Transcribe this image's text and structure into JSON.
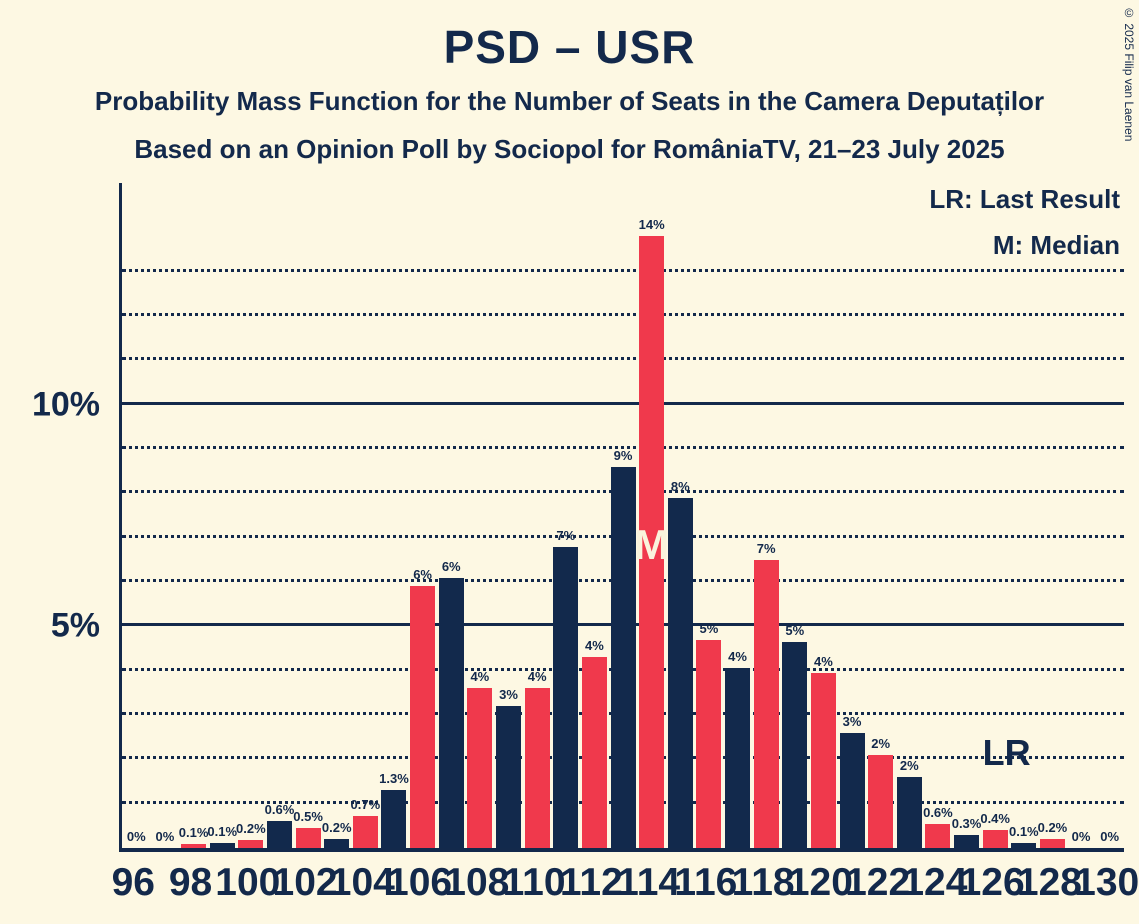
{
  "page": {
    "title": "PSD – USR",
    "subtitle1": "Probability Mass Function for the Number of Seats in the Camera Deputaților",
    "subtitle2": "Based on an Opinion Poll by Sociopol for RomâniaTV, 21–23 July 2025",
    "copyright": "© 2025 Filip van Laenen"
  },
  "legend": {
    "lr": "LR: Last Result",
    "m": "M: Median"
  },
  "colors": {
    "background": "#FDF8E3",
    "red": "#F0394C",
    "navy": "#12294C",
    "text": "#13294B",
    "median_letter": "#FAF3DC"
  },
  "chart_data": {
    "type": "bar",
    "title": "PSD – USR",
    "xlabel": "Number of Seats in the Camera Deputaților",
    "ylabel": "Probability Mass",
    "ylim": [
      0,
      15
    ],
    "grid": "horizontal dotted line every 1%, solid line at 0%, 5% and 10%, dotted lines up to 13%",
    "legend_position": "top-right",
    "y_ticks": [
      {
        "label": "5%",
        "value": 5
      },
      {
        "label": "10%",
        "value": 10
      }
    ],
    "x_tick_labels": [
      96,
      98,
      100,
      102,
      104,
      106,
      108,
      110,
      112,
      114,
      116,
      118,
      120,
      122,
      124,
      126,
      128,
      130
    ],
    "seats": [
      {
        "seat": 96,
        "value": 0,
        "label": "0%",
        "color": "red"
      },
      {
        "seat": 97,
        "value": 0,
        "label": "0%",
        "color": "navy"
      },
      {
        "seat": 98,
        "value": 0.1,
        "label": "0.1%",
        "color": "red"
      },
      {
        "seat": 99,
        "value": 0.12,
        "label": "0.1%",
        "color": "navy"
      },
      {
        "seat": 100,
        "value": 0.18,
        "label": "0.2%",
        "color": "red"
      },
      {
        "seat": 101,
        "value": 0.6,
        "label": "0.6%",
        "color": "navy"
      },
      {
        "seat": 102,
        "value": 0.45,
        "label": "0.5%",
        "color": "red"
      },
      {
        "seat": 103,
        "value": 0.2,
        "label": "0.2%",
        "color": "navy"
      },
      {
        "seat": 104,
        "value": 0.72,
        "label": "0.7%",
        "color": "red"
      },
      {
        "seat": 105,
        "value": 1.3,
        "label": "1.3%",
        "color": "navy"
      },
      {
        "seat": 106,
        "value": 5.9,
        "label": "6%",
        "color": "red"
      },
      {
        "seat": 107,
        "value": 6.1,
        "label": "6%",
        "color": "navy"
      },
      {
        "seat": 108,
        "value": 3.6,
        "label": "4%",
        "color": "red"
      },
      {
        "seat": 109,
        "value": 3.2,
        "label": "3%",
        "color": "navy"
      },
      {
        "seat": 110,
        "value": 3.6,
        "label": "4%",
        "color": "red"
      },
      {
        "seat": 111,
        "value": 6.8,
        "label": "7%",
        "color": "navy"
      },
      {
        "seat": 112,
        "value": 4.3,
        "label": "4%",
        "color": "red"
      },
      {
        "seat": 113,
        "value": 8.6,
        "label": "9%",
        "color": "navy"
      },
      {
        "seat": 114,
        "value": 13.8,
        "label": "14%",
        "color": "red"
      },
      {
        "seat": 115,
        "value": 7.9,
        "label": "8%",
        "color": "navy"
      },
      {
        "seat": 116,
        "value": 4.7,
        "label": "5%",
        "color": "red"
      },
      {
        "seat": 117,
        "value": 4.05,
        "label": "4%",
        "color": "navy"
      },
      {
        "seat": 118,
        "value": 6.5,
        "label": "7%",
        "color": "red"
      },
      {
        "seat": 119,
        "value": 4.65,
        "label": "5%",
        "color": "navy"
      },
      {
        "seat": 120,
        "value": 3.95,
        "label": "4%",
        "color": "red"
      },
      {
        "seat": 121,
        "value": 2.6,
        "label": "3%",
        "color": "navy"
      },
      {
        "seat": 122,
        "value": 2.1,
        "label": "2%",
        "color": "red"
      },
      {
        "seat": 123,
        "value": 1.6,
        "label": "2%",
        "color": "navy"
      },
      {
        "seat": 124,
        "value": 0.55,
        "label": "0.6%",
        "color": "red"
      },
      {
        "seat": 125,
        "value": 0.3,
        "label": "0.3%",
        "color": "navy"
      },
      {
        "seat": 126,
        "value": 0.4,
        "label": "0.4%",
        "color": "red"
      },
      {
        "seat": 127,
        "value": 0.12,
        "label": "0.1%",
        "color": "navy"
      },
      {
        "seat": 128,
        "value": 0.2,
        "label": "0.2%",
        "color": "red"
      },
      {
        "seat": 129,
        "value": 0,
        "label": "0%",
        "color": "navy"
      },
      {
        "seat": 130,
        "value": 0,
        "label": "0%",
        "color": "red"
      }
    ],
    "annotations": {
      "median": {
        "label": "M",
        "seat": 114,
        "y_pct": 6.84
      },
      "last_result": {
        "label": "LR",
        "seat": 126.4,
        "y_pct": 2.15
      }
    }
  }
}
